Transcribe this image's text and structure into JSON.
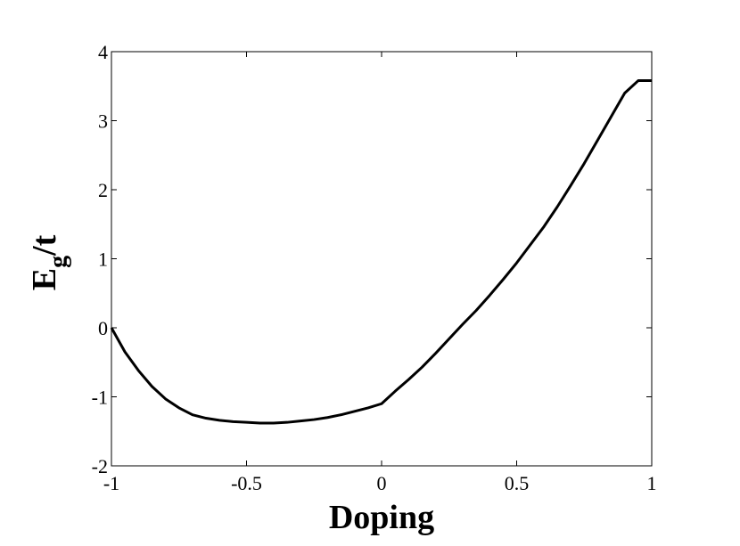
{
  "chart_data": {
    "type": "line",
    "title": "",
    "xlabel": "Doping",
    "ylabel": {
      "main": "E",
      "subscript": "g",
      "suffix": "/t"
    },
    "xlim": [
      -1,
      1
    ],
    "ylim": [
      -2,
      4
    ],
    "x_ticks": [
      -1,
      -0.5,
      0,
      0.5,
      1
    ],
    "x_tick_labels": [
      "-1",
      "-0.5",
      "0",
      "0.5",
      "1"
    ],
    "y_ticks": [
      -2,
      -1,
      0,
      1,
      2,
      3,
      4
    ],
    "y_tick_labels": [
      "-2",
      "-1",
      "0",
      "1",
      "2",
      "3",
      "4"
    ],
    "grid": false,
    "legend": "none",
    "line_color": "#000000",
    "series": [
      {
        "x": [
          -1.0,
          -0.95,
          -0.9,
          -0.85,
          -0.8,
          -0.75,
          -0.7,
          -0.65,
          -0.6,
          -0.55,
          -0.5,
          -0.45,
          -0.4,
          -0.35,
          -0.3,
          -0.25,
          -0.2,
          -0.15,
          -0.1,
          -0.05,
          0.0,
          0.05,
          0.1,
          0.15,
          0.2,
          0.25,
          0.3,
          0.35,
          0.4,
          0.45,
          0.5,
          0.55,
          0.6,
          0.65,
          0.7,
          0.75,
          0.8,
          0.85,
          0.9,
          0.95,
          1.0
        ],
        "y": [
          0.0,
          -0.35,
          -0.62,
          -0.85,
          -1.03,
          -1.16,
          -1.26,
          -1.31,
          -1.34,
          -1.36,
          -1.37,
          -1.38,
          -1.38,
          -1.37,
          -1.35,
          -1.33,
          -1.3,
          -1.26,
          -1.21,
          -1.16,
          -1.1,
          -0.92,
          -0.75,
          -0.57,
          -0.37,
          -0.16,
          0.05,
          0.25,
          0.47,
          0.7,
          0.94,
          1.2,
          1.46,
          1.75,
          2.06,
          2.38,
          2.72,
          3.06,
          3.4,
          3.58,
          3.58
        ]
      }
    ]
  }
}
